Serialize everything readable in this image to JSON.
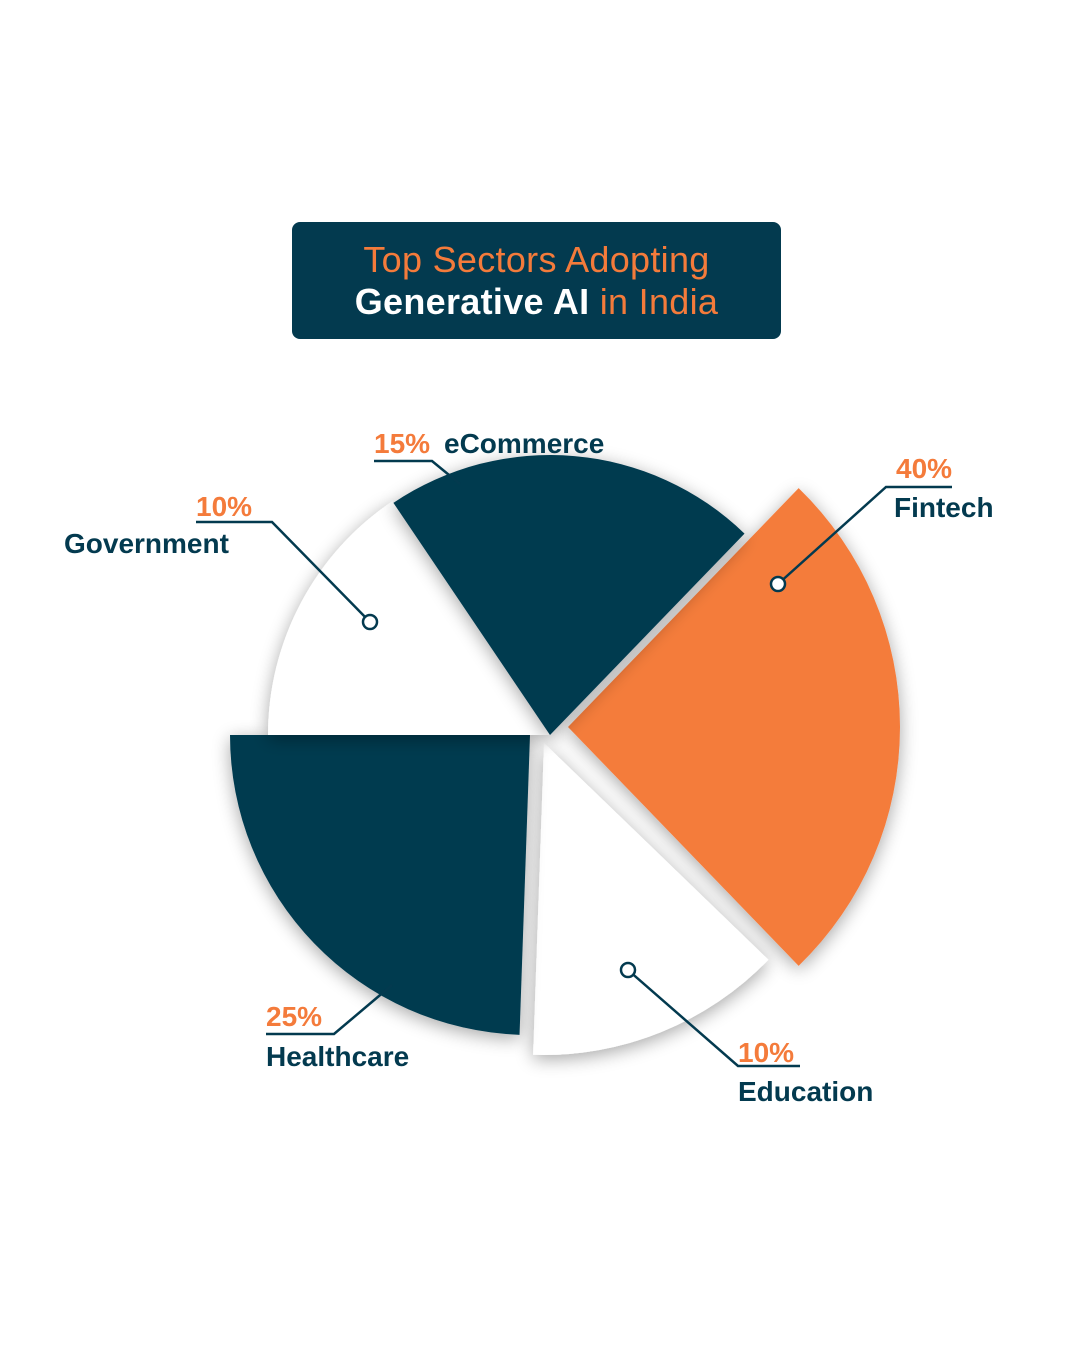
{
  "title": {
    "line1": "Top Sectors Adopting",
    "line2_bold": "Generative AI",
    "line2_rest": "in India"
  },
  "colors": {
    "navy": "#033a4f",
    "orange": "#f47b3b",
    "white": "#ffffff"
  },
  "chart_data": {
    "type": "pie",
    "title": "Top Sectors Adopting Generative AI in India",
    "unit": "%",
    "slices": [
      {
        "label": "Fintech",
        "value": 40,
        "display": "40%",
        "color": "#f47b3b"
      },
      {
        "label": "Education",
        "value": 10,
        "display": "10%",
        "color": "#ffffff"
      },
      {
        "label": "Healthcare",
        "value": 25,
        "display": "25%",
        "color": "#033a4f"
      },
      {
        "label": "Government",
        "value": 10,
        "display": "10%",
        "color": "#ffffff"
      },
      {
        "label": "eCommerce",
        "value": 15,
        "display": "15%",
        "color": "#033a4f"
      }
    ]
  }
}
